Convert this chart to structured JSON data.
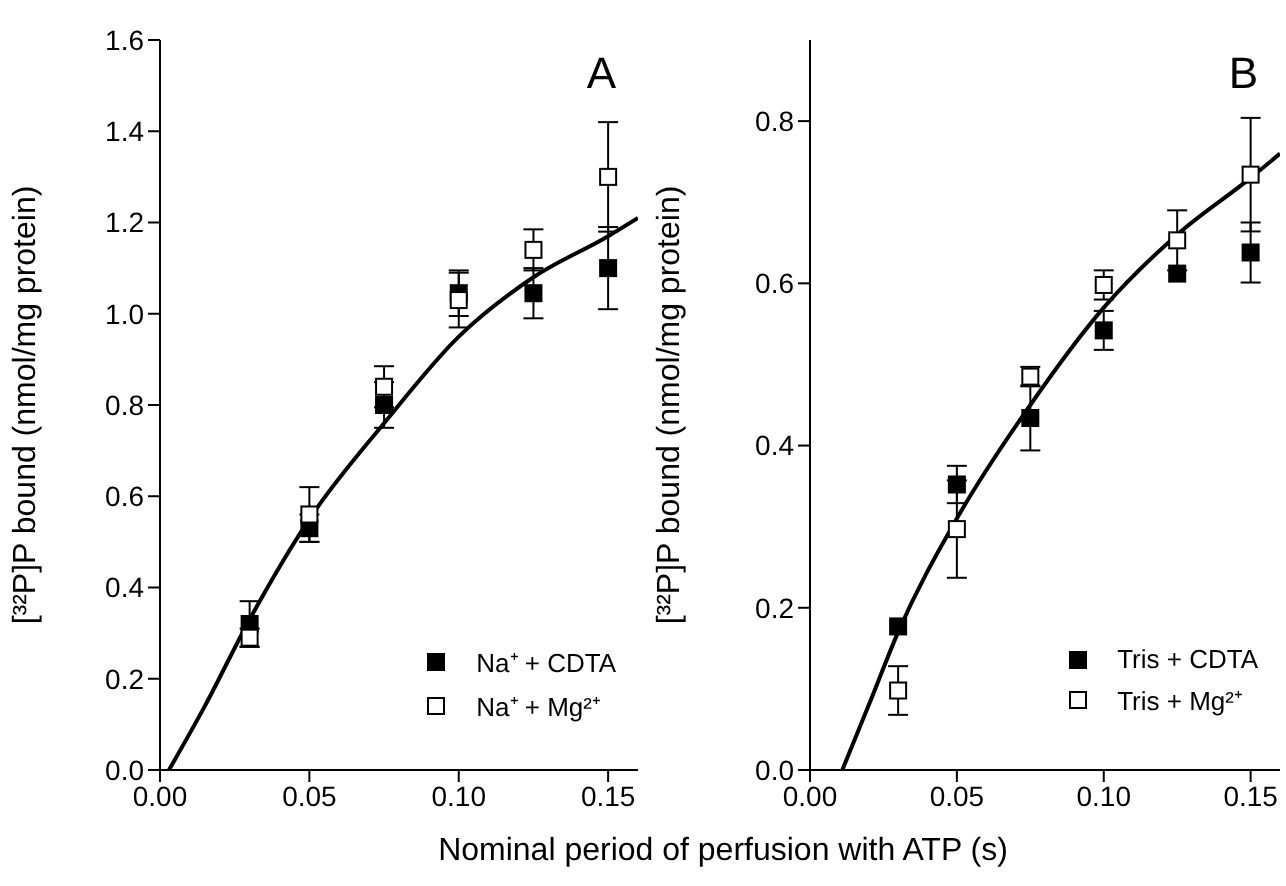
{
  "chart_data": [
    {
      "type": "scatter",
      "ylabel": "[³²P]P bound (nmol/mg protein)",
      "xlabel": "Nominal period of perfusion with ATP (s)",
      "annotations": [
        "A"
      ],
      "marker": "square",
      "legend": "bottom right",
      "xlim": [
        0,
        0.16
      ],
      "xticks": [
        {
          "value": 0,
          "label": "0.00"
        },
        {
          "value": 0.05,
          "label": "0.05"
        },
        {
          "value": 0.1,
          "label": "0.10"
        },
        {
          "value": 0.15,
          "label": "0.15"
        }
      ],
      "ylim": [
        0,
        1.6
      ],
      "yticks": [
        {
          "value": 0,
          "label": "0.0"
        },
        {
          "value": 0.2,
          "label": "0.2"
        },
        {
          "value": 0.4,
          "label": "0.4"
        },
        {
          "value": 0.6,
          "label": "0.6"
        },
        {
          "value": 0.8,
          "label": "0.8"
        },
        {
          "value": 1,
          "label": "1.0"
        },
        {
          "value": 1.2,
          "label": "1.2"
        },
        {
          "value": 1.4,
          "label": "1.4"
        },
        {
          "value": 1.6,
          "label": "1.6"
        }
      ],
      "x": [
        0.03,
        0.05,
        0.075,
        0.1,
        0.125,
        0.15
      ],
      "series": [
        {
          "name": "Na⁺ + CDTA",
          "color": "#000000",
          "values": [
            0.32,
            0.53,
            0.8,
            1.045,
            1.045,
            1.1
          ],
          "errors": [
            0.05,
            0.03,
            0.05,
            0.05,
            0.055,
            0.09
          ]
        },
        {
          "name": "Na⁺ + Mg²⁺",
          "color": "#ffffff",
          "values": [
            0.29,
            0.56,
            0.84,
            1.03,
            1.14,
            1.3
          ],
          "errors": [
            0.02,
            0.06,
            0.045,
            0.06,
            0.045,
            0.12
          ]
        },
        {
          "type": "line",
          "color": "#000000",
          "marker": "none",
          "x": [
            0.003,
            0.015,
            0.03,
            0.05,
            0.075,
            0.1,
            0.125,
            0.15,
            0.16
          ],
          "values": [
            0,
            0.14,
            0.33,
            0.55,
            0.76,
            0.95,
            1.08,
            1.17,
            1.21
          ]
        }
      ]
    },
    {
      "type": "scatter",
      "ylabel": "[³²P]P bound (nmol/mg protein)",
      "annotations": [
        "B"
      ],
      "marker": "square",
      "legend": "bottom right",
      "xlim": [
        0,
        0.16
      ],
      "xticks": [
        {
          "value": 0,
          "label": "0.00"
        },
        {
          "value": 0.05,
          "label": "0.05"
        },
        {
          "value": 0.1,
          "label": "0.10"
        },
        {
          "value": 0.15,
          "label": "0.15"
        }
      ],
      "ylim": [
        0,
        0.9
      ],
      "yticks": [
        {
          "value": 0,
          "label": "0.0"
        },
        {
          "value": 0.2,
          "label": "0.2"
        },
        {
          "value": 0.4,
          "label": "0.4"
        },
        {
          "value": 0.6,
          "label": "0.6"
        },
        {
          "value": 0.8,
          "label": "0.8"
        }
      ],
      "x": [
        0.03,
        0.05,
        0.075,
        0.1,
        0.125,
        0.15
      ],
      "series": [
        {
          "name": "Tris + CDTA",
          "color": "#000000",
          "values": [
            0.177,
            0.352,
            0.434,
            0.542,
            0.612,
            0.638
          ],
          "errors": [
            null,
            0.023,
            0.04,
            0.024,
            null,
            0.037
          ]
        },
        {
          "name": "Tris + Mg²⁺",
          "color": "#ffffff",
          "values": [
            0.098,
            0.297,
            0.485,
            0.598,
            0.653,
            0.734
          ],
          "errors": [
            0.03,
            0.06,
            0.012,
            0.018,
            0.037,
            0.07
          ]
        },
        {
          "type": "line",
          "color": "#000000",
          "marker": "none",
          "x": [
            0.011,
            0.02,
            0.03,
            0.05,
            0.075,
            0.1,
            0.125,
            0.15,
            0.16
          ],
          "values": [
            0,
            0.08,
            0.17,
            0.31,
            0.45,
            0.57,
            0.66,
            0.73,
            0.76
          ]
        }
      ]
    }
  ]
}
